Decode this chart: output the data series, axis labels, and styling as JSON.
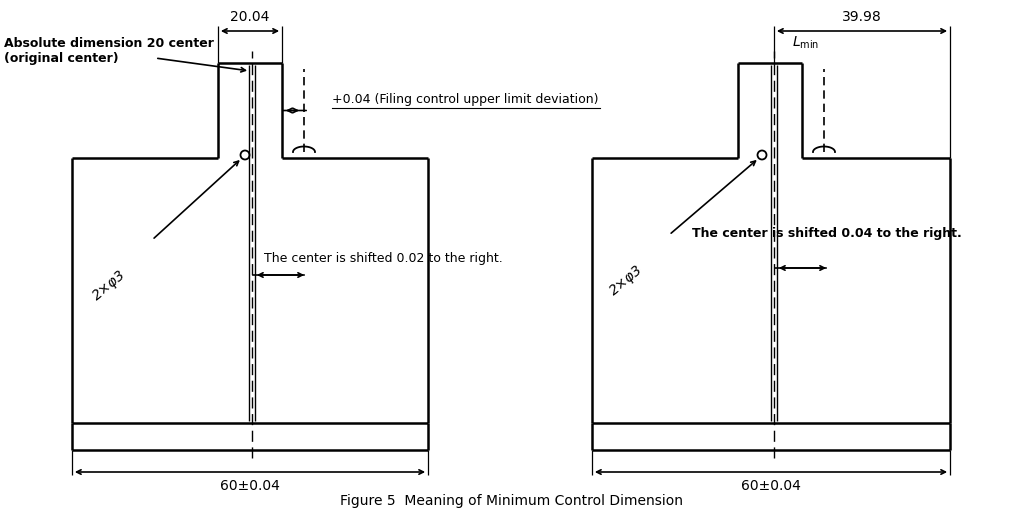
{
  "title": "Figure 5  Meaning of Minimum Control Dimension",
  "bg_color": "#ffffff",
  "annotations": {
    "left_dim_top": "20.04",
    "left_dim_bot": "60±0.04",
    "left_label_line1": "Absolute dimension 20 center",
    "left_label_line2": "(original center)",
    "left_deviation": "+0.04 (Filing control upper limit deviation)",
    "left_shift": "The center is shifted 0.02 to the right.",
    "right_dim_top": "39.98",
    "right_dim_bot": "60±0.04",
    "right_shift": "The center is shifted 0.04 to the right.",
    "hole_label": "2×φ3"
  }
}
